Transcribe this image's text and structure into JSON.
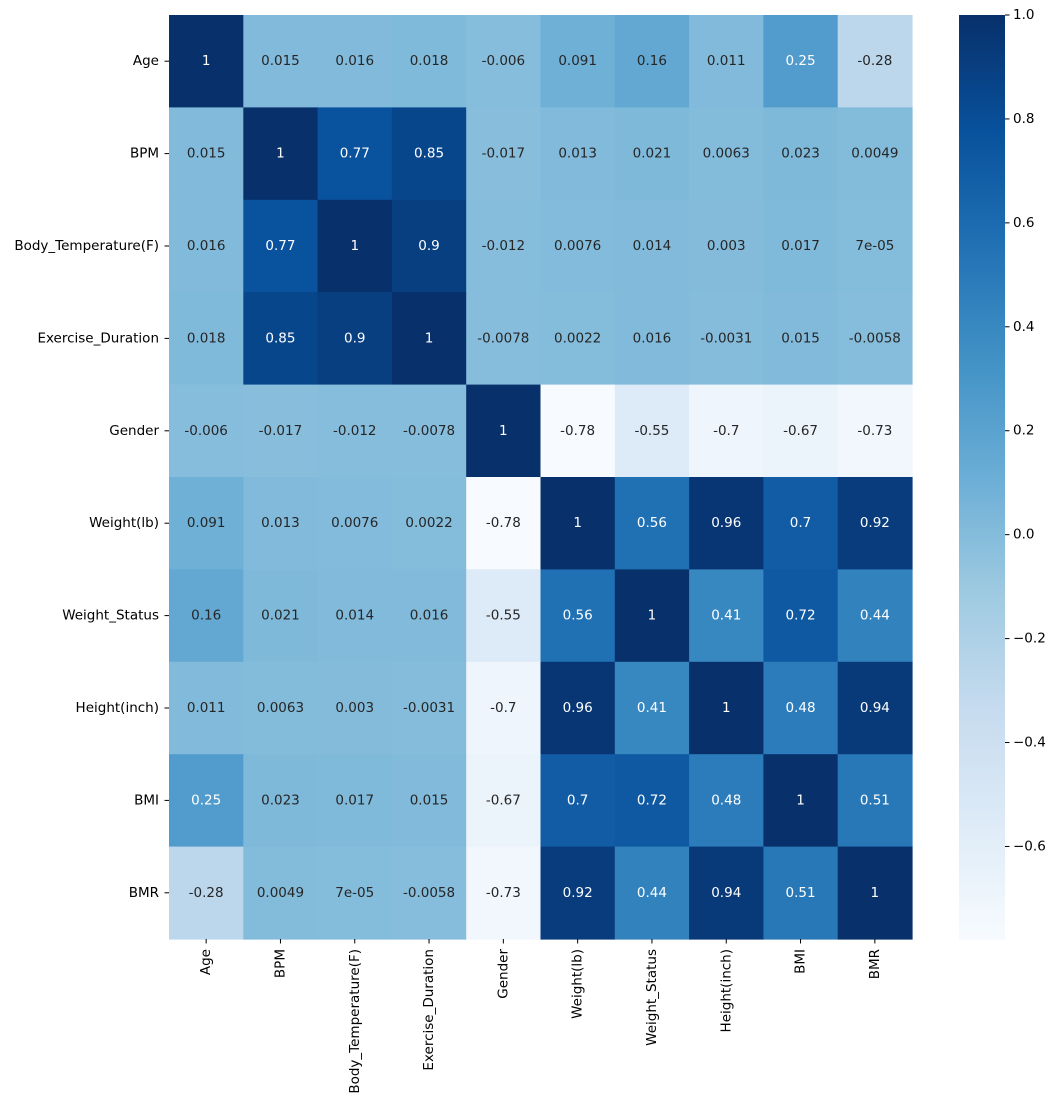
{
  "chart_data": {
    "type": "heatmap",
    "title": "",
    "xlabel": "",
    "ylabel": "",
    "colormap": "Blues",
    "vmin": -0.78,
    "vmax": 1.0,
    "x_labels": [
      "Age",
      "BPM",
      "Body_Temperature(F)",
      "Exercise_Duration",
      "Gender",
      "Weight(lb)",
      "Weight_Status",
      "Height(inch)",
      "BMI",
      "BMR"
    ],
    "y_labels": [
      "Age",
      "BPM",
      "Body_Temperature(F)",
      "Exercise_Duration",
      "Gender",
      "Weight(lb)",
      "Weight_Status",
      "Height(inch)",
      "BMI",
      "BMR"
    ],
    "values": [
      [
        1,
        0.015,
        0.016,
        0.018,
        -0.006,
        0.091,
        0.16,
        0.011,
        0.25,
        -0.28
      ],
      [
        0.015,
        1,
        0.77,
        0.85,
        -0.017,
        0.013,
        0.021,
        0.0063,
        0.023,
        0.0049
      ],
      [
        0.016,
        0.77,
        1,
        0.9,
        -0.012,
        0.0076,
        0.014,
        0.003,
        0.017,
        7e-05
      ],
      [
        0.018,
        0.85,
        0.9,
        1,
        -0.0078,
        0.0022,
        0.016,
        -0.0031,
        0.015,
        -0.0058
      ],
      [
        -0.006,
        -0.017,
        -0.012,
        -0.0078,
        1,
        -0.78,
        -0.55,
        -0.7,
        -0.67,
        -0.73
      ],
      [
        0.091,
        0.013,
        0.0076,
        0.0022,
        -0.78,
        1,
        0.56,
        0.96,
        0.7,
        0.92
      ],
      [
        0.16,
        0.021,
        0.014,
        0.016,
        -0.55,
        0.56,
        1,
        0.41,
        0.72,
        0.44
      ],
      [
        0.011,
        0.0063,
        0.003,
        -0.0031,
        -0.7,
        0.96,
        0.41,
        1,
        0.48,
        0.94
      ],
      [
        0.25,
        0.023,
        0.017,
        0.015,
        -0.67,
        0.7,
        0.72,
        0.48,
        1,
        0.51
      ],
      [
        -0.28,
        0.0049,
        7e-05,
        -0.0058,
        -0.73,
        0.92,
        0.44,
        0.94,
        0.51,
        1
      ]
    ],
    "annotations": [
      [
        "1",
        "0.015",
        "0.016",
        "0.018",
        "-0.006",
        "0.091",
        "0.16",
        "0.011",
        "0.25",
        "-0.28"
      ],
      [
        "0.015",
        "1",
        "0.77",
        "0.85",
        "-0.017",
        "0.013",
        "0.021",
        "0.0063",
        "0.023",
        "0.0049"
      ],
      [
        "0.016",
        "0.77",
        "1",
        "0.9",
        "-0.012",
        "0.0076",
        "0.014",
        "0.003",
        "0.017",
        "7e-05"
      ],
      [
        "0.018",
        "0.85",
        "0.9",
        "1",
        "-0.0078",
        "0.0022",
        "0.016",
        "-0.0031",
        "0.015",
        "-0.0058"
      ],
      [
        "-0.006",
        "-0.017",
        "-0.012",
        "-0.0078",
        "1",
        "-0.78",
        "-0.55",
        "-0.7",
        "-0.67",
        "-0.73"
      ],
      [
        "0.091",
        "0.013",
        "0.0076",
        "0.0022",
        "-0.78",
        "1",
        "0.56",
        "0.96",
        "0.7",
        "0.92"
      ],
      [
        "0.16",
        "0.021",
        "0.014",
        "0.016",
        "-0.55",
        "0.56",
        "1",
        "0.41",
        "0.72",
        "0.44"
      ],
      [
        "0.011",
        "0.0063",
        "0.003",
        "-0.0031",
        "-0.7",
        "0.96",
        "0.41",
        "1",
        "0.48",
        "0.94"
      ],
      [
        "0.25",
        "0.023",
        "0.017",
        "0.015",
        "-0.67",
        "0.7",
        "0.72",
        "0.48",
        "1",
        "0.51"
      ],
      [
        "-0.28",
        "0.0049",
        "7e-05",
        "-0.0058",
        "-0.73",
        "0.92",
        "0.44",
        "0.94",
        "0.51",
        "1"
      ]
    ],
    "colorbar": {
      "ticks": [
        1.0,
        0.8,
        0.6,
        0.4,
        0.2,
        0.0,
        -0.2,
        -0.4,
        -0.6
      ],
      "tick_labels": [
        "1.0",
        "0.8",
        "0.6",
        "0.4",
        "0.2",
        "0.0",
        "−0.2",
        "−0.4",
        "−0.6"
      ]
    }
  }
}
